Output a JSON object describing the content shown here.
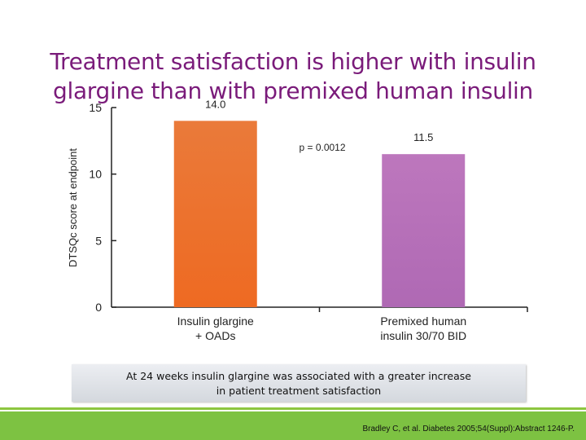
{
  "title": {
    "line1": "Treatment satisfaction is higher with insulin",
    "line2": "glargine than with premixed human insulin"
  },
  "chart_data": {
    "type": "bar",
    "categories": [
      "Insulin glargine + OADs",
      "Premixed human insulin 30/70 BID"
    ],
    "category_lines": [
      [
        "Insulin glargine",
        "+ OADs"
      ],
      [
        "Premixed human",
        "insulin 30/70 BID"
      ]
    ],
    "values": [
      14.0,
      11.5
    ],
    "value_labels": [
      "14.0",
      "11.5"
    ],
    "bar_colors": [
      "#ee6a2a",
      "#b46fb8"
    ],
    "ylabel": "DTSQc score at endpoint",
    "ylim": [
      0,
      15
    ],
    "yticks": [
      0,
      5,
      10,
      15
    ],
    "annotation": "p = 0.0012",
    "grid": false,
    "legend": "none"
  },
  "note": {
    "line1": "At 24 weeks insulin glargine was associated with a greater increase",
    "line2": "in patient treatment satisfaction"
  },
  "citation": "Bradley C, et al. Diabetes 2005;54(Suppl):Abstract 1246-P.",
  "colors": {
    "title": "#7a1b7a",
    "band": "#7dc242"
  }
}
